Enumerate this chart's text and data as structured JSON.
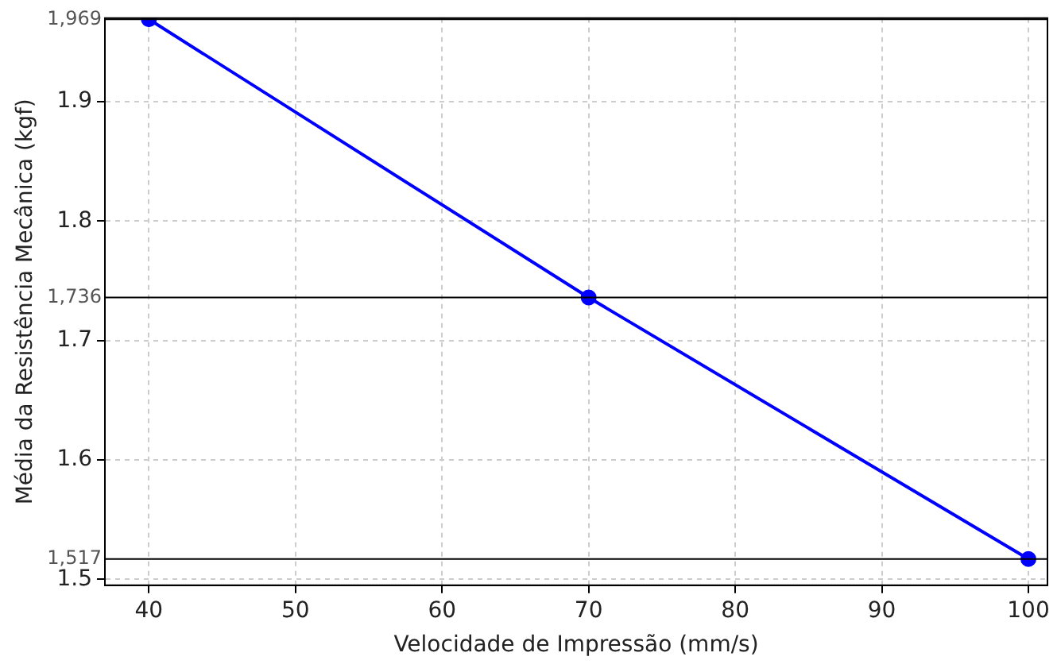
{
  "chart_data": {
    "type": "line",
    "xlabel": "Velocidade de Impressão (mm/s)",
    "ylabel": "Média da Resistência Mecânica (kgf)",
    "x": [
      40,
      70,
      100
    ],
    "series": [
      {
        "color": "#0000ff",
        "values": [
          1.969,
          1.736,
          1.517
        ]
      }
    ],
    "xlim": [
      37,
      101.3
    ],
    "xticks": [
      40,
      50,
      60,
      70,
      80,
      90,
      100
    ],
    "ylim": [
      1.495,
      1.97
    ],
    "yticks": [
      1.5,
      1.6,
      1.7,
      1.8,
      1.9
    ],
    "ref_lines": [
      {
        "axis": "y",
        "value": 1.969,
        "label": "1,969",
        "color": "#000000"
      },
      {
        "axis": "y",
        "value": 1.736,
        "label": "1,736",
        "color": "#000000"
      },
      {
        "axis": "y",
        "value": 1.517,
        "label": "1,517",
        "color": "#000000"
      }
    ],
    "grid": true,
    "legend": false,
    "marker": "circle",
    "line_style": "solid"
  }
}
